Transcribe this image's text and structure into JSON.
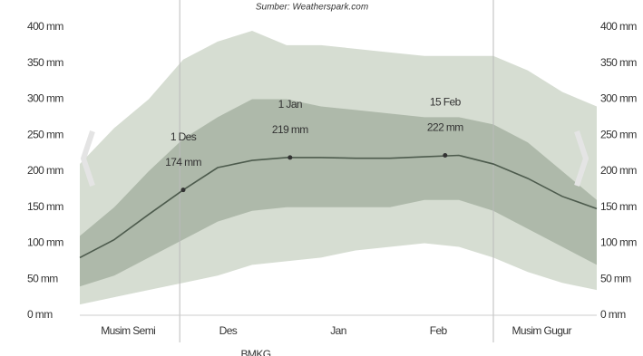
{
  "chart_data": {
    "type": "band",
    "title": "Sumber: Weatherspark.com",
    "footer": "BMKG",
    "x": [
      0,
      10,
      20,
      30,
      40,
      50,
      60,
      70,
      80,
      90,
      100,
      110,
      120,
      130,
      140,
      150
    ],
    "xlim": [
      0,
      150
    ],
    "xticks": [
      {
        "value": 14,
        "label": "Musim Semi"
      },
      {
        "value": 43,
        "label": "Des"
      },
      {
        "value": 75,
        "label": "Jan"
      },
      {
        "value": 104,
        "label": "Feb"
      },
      {
        "value": 134,
        "label": "Musim Gugur"
      }
    ],
    "season_bounds": [
      29,
      120
    ],
    "ylim": [
      0,
      400
    ],
    "yticks": [
      {
        "value": 0,
        "label": "0 mm"
      },
      {
        "value": 50,
        "label": "50 mm"
      },
      {
        "value": 100,
        "label": "100 mm"
      },
      {
        "value": 150,
        "label": "150 mm"
      },
      {
        "value": 200,
        "label": "200 mm"
      },
      {
        "value": 250,
        "label": "250 mm"
      },
      {
        "value": 300,
        "label": "300 mm"
      },
      {
        "value": 350,
        "label": "350 mm"
      },
      {
        "value": 400,
        "label": "400 mm"
      }
    ],
    "bands": [
      {
        "color": "#d6ddd2",
        "upper": [
          210,
          260,
          300,
          355,
          380,
          395,
          375,
          375,
          370,
          365,
          360,
          360,
          360,
          340,
          310,
          290
        ],
        "lower": [
          15,
          25,
          35,
          45,
          55,
          70,
          75,
          80,
          90,
          95,
          100,
          95,
          80,
          60,
          45,
          35
        ]
      },
      {
        "color": "#aeb9aa",
        "upper": [
          110,
          150,
          200,
          245,
          275,
          300,
          300,
          290,
          285,
          280,
          275,
          275,
          265,
          240,
          200,
          160
        ],
        "lower": [
          40,
          55,
          80,
          105,
          130,
          145,
          150,
          150,
          150,
          150,
          160,
          160,
          145,
          120,
          95,
          70
        ]
      }
    ],
    "median": {
      "color": "#4d5b4d",
      "values": [
        80,
        105,
        140,
        174,
        205,
        215,
        219,
        219,
        218,
        218,
        220,
        222,
        210,
        190,
        165,
        148
      ]
    },
    "annotations": [
      {
        "date": "1 Des",
        "x": 30,
        "value": 174,
        "value_label": "174 mm"
      },
      {
        "date": "1 Jan",
        "x": 61,
        "value": 219,
        "value_label": "219 mm"
      },
      {
        "date": "15 Feb",
        "x": 106,
        "value": 222,
        "value_label": "222 mm"
      }
    ]
  }
}
